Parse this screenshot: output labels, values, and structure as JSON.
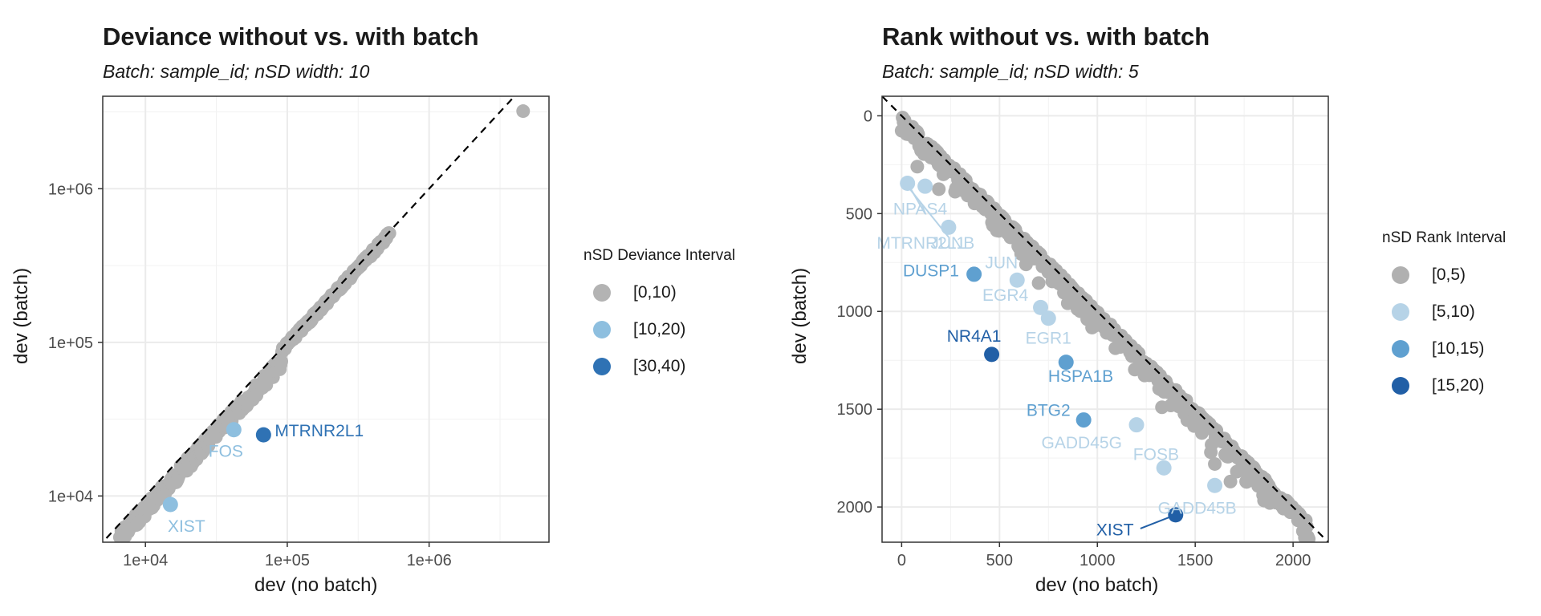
{
  "chart_data": [
    {
      "type": "scatter",
      "title": "Deviance without vs. with batch",
      "subtitle": "Batch: sample_id; nSD width: 10",
      "xlabel": "dev (no batch)",
      "ylabel": "dev (batch)",
      "scale": "log10",
      "xlim": [
        5000,
        7000000
      ],
      "ylim": [
        5000,
        4000000
      ],
      "x_ticks": [
        10000,
        100000,
        1000000
      ],
      "x_tick_labels": [
        "1e+04",
        "1e+05",
        "1e+06"
      ],
      "y_ticks": [
        10000,
        100000,
        1000000
      ],
      "y_tick_labels": [
        "1e+04",
        "1e+05",
        "1e+06"
      ],
      "grid": true,
      "reference_line": "y = x (dashed)",
      "legend": {
        "title": "nSD Deviance Interval",
        "position": "right",
        "entries": [
          {
            "label": "[0,10)",
            "color": "#b3b3b3"
          },
          {
            "label": "[10,20)",
            "color": "#8ebfdf"
          },
          {
            "label": "[30,40)",
            "color": "#2f72b4"
          }
        ]
      },
      "labeled_points": [
        {
          "label": "MTRNR2L1",
          "x": 68000,
          "y": 25000,
          "group": "[30,40)"
        },
        {
          "label": "FOS",
          "x": 42000,
          "y": 27000,
          "group": "[10,20)"
        },
        {
          "label": "XIST",
          "x": 15000,
          "y": 8800,
          "group": "[10,20)"
        }
      ],
      "background_points": {
        "group": "[0,10)",
        "note": "dense band along the diagonal y = x from about 6.5e+03 to 5e+05, plus an outlier near 4.6e+06"
      }
    },
    {
      "type": "scatter",
      "title": "Rank without vs. with batch",
      "subtitle": "Batch: sample_id; nSD width: 5",
      "xlabel": "dev (no batch)",
      "ylabel": "dev (batch)",
      "xlim": [
        -100,
        2180
      ],
      "ylim": [
        2180,
        -100
      ],
      "y_reversed": true,
      "x_ticks": [
        0,
        500,
        1000,
        1500,
        2000
      ],
      "x_tick_labels": [
        "0",
        "500",
        "1000",
        "1500",
        "2000"
      ],
      "y_ticks": [
        0,
        500,
        1000,
        1500,
        2000
      ],
      "y_tick_labels": [
        "0",
        "500",
        "1000",
        "1500",
        "2000"
      ],
      "grid": true,
      "reference_line": "y = x (dashed)",
      "legend": {
        "title": "nSD Rank Interval",
        "position": "right",
        "entries": [
          {
            "label": "[0,5)",
            "color": "#b0b0b0"
          },
          {
            "label": "[5,10)",
            "color": "#b6d3e7"
          },
          {
            "label": "[10,15)",
            "color": "#5fa0d0"
          },
          {
            "label": "[15,20)",
            "color": "#215fa6"
          }
        ]
      },
      "labeled_points": [
        {
          "label": "NPAS4",
          "x": 30,
          "y": 345,
          "group": "[5,10)"
        },
        {
          "label": "MTRNR2L1",
          "x": 120,
          "y": 360,
          "group": "[5,10)"
        },
        {
          "label": "JUNB",
          "x": 240,
          "y": 570,
          "group": "[5,10)"
        },
        {
          "label": "JUN",
          "x": 590,
          "y": 840,
          "group": "[5,10)"
        },
        {
          "label": "DUSP1",
          "x": 370,
          "y": 810,
          "group": "[10,15)"
        },
        {
          "label": "EGR4",
          "x": 710,
          "y": 980,
          "group": "[5,10)"
        },
        {
          "label": "EGR1",
          "x": 750,
          "y": 1035,
          "group": "[5,10)"
        },
        {
          "label": "NR4A1",
          "x": 460,
          "y": 1220,
          "group": "[15,20)"
        },
        {
          "label": "HSPA1B",
          "x": 840,
          "y": 1260,
          "group": "[10,15)"
        },
        {
          "label": "BTG2",
          "x": 930,
          "y": 1555,
          "group": "[10,15)"
        },
        {
          "label": "GADD45G",
          "x": 1200,
          "y": 1580,
          "group": "[5,10)"
        },
        {
          "label": "FOSB",
          "x": 1340,
          "y": 1800,
          "group": "[5,10)"
        },
        {
          "label": "GADD45B",
          "x": 1600,
          "y": 1890,
          "group": "[5,10)"
        },
        {
          "label": "XIST",
          "x": 1400,
          "y": 2040,
          "group": "[15,20)"
        }
      ],
      "background_points": {
        "group": "[0,5)",
        "note": "dense band from (0,0) to about (2080,2080) lying at or below the diagonal"
      }
    }
  ]
}
